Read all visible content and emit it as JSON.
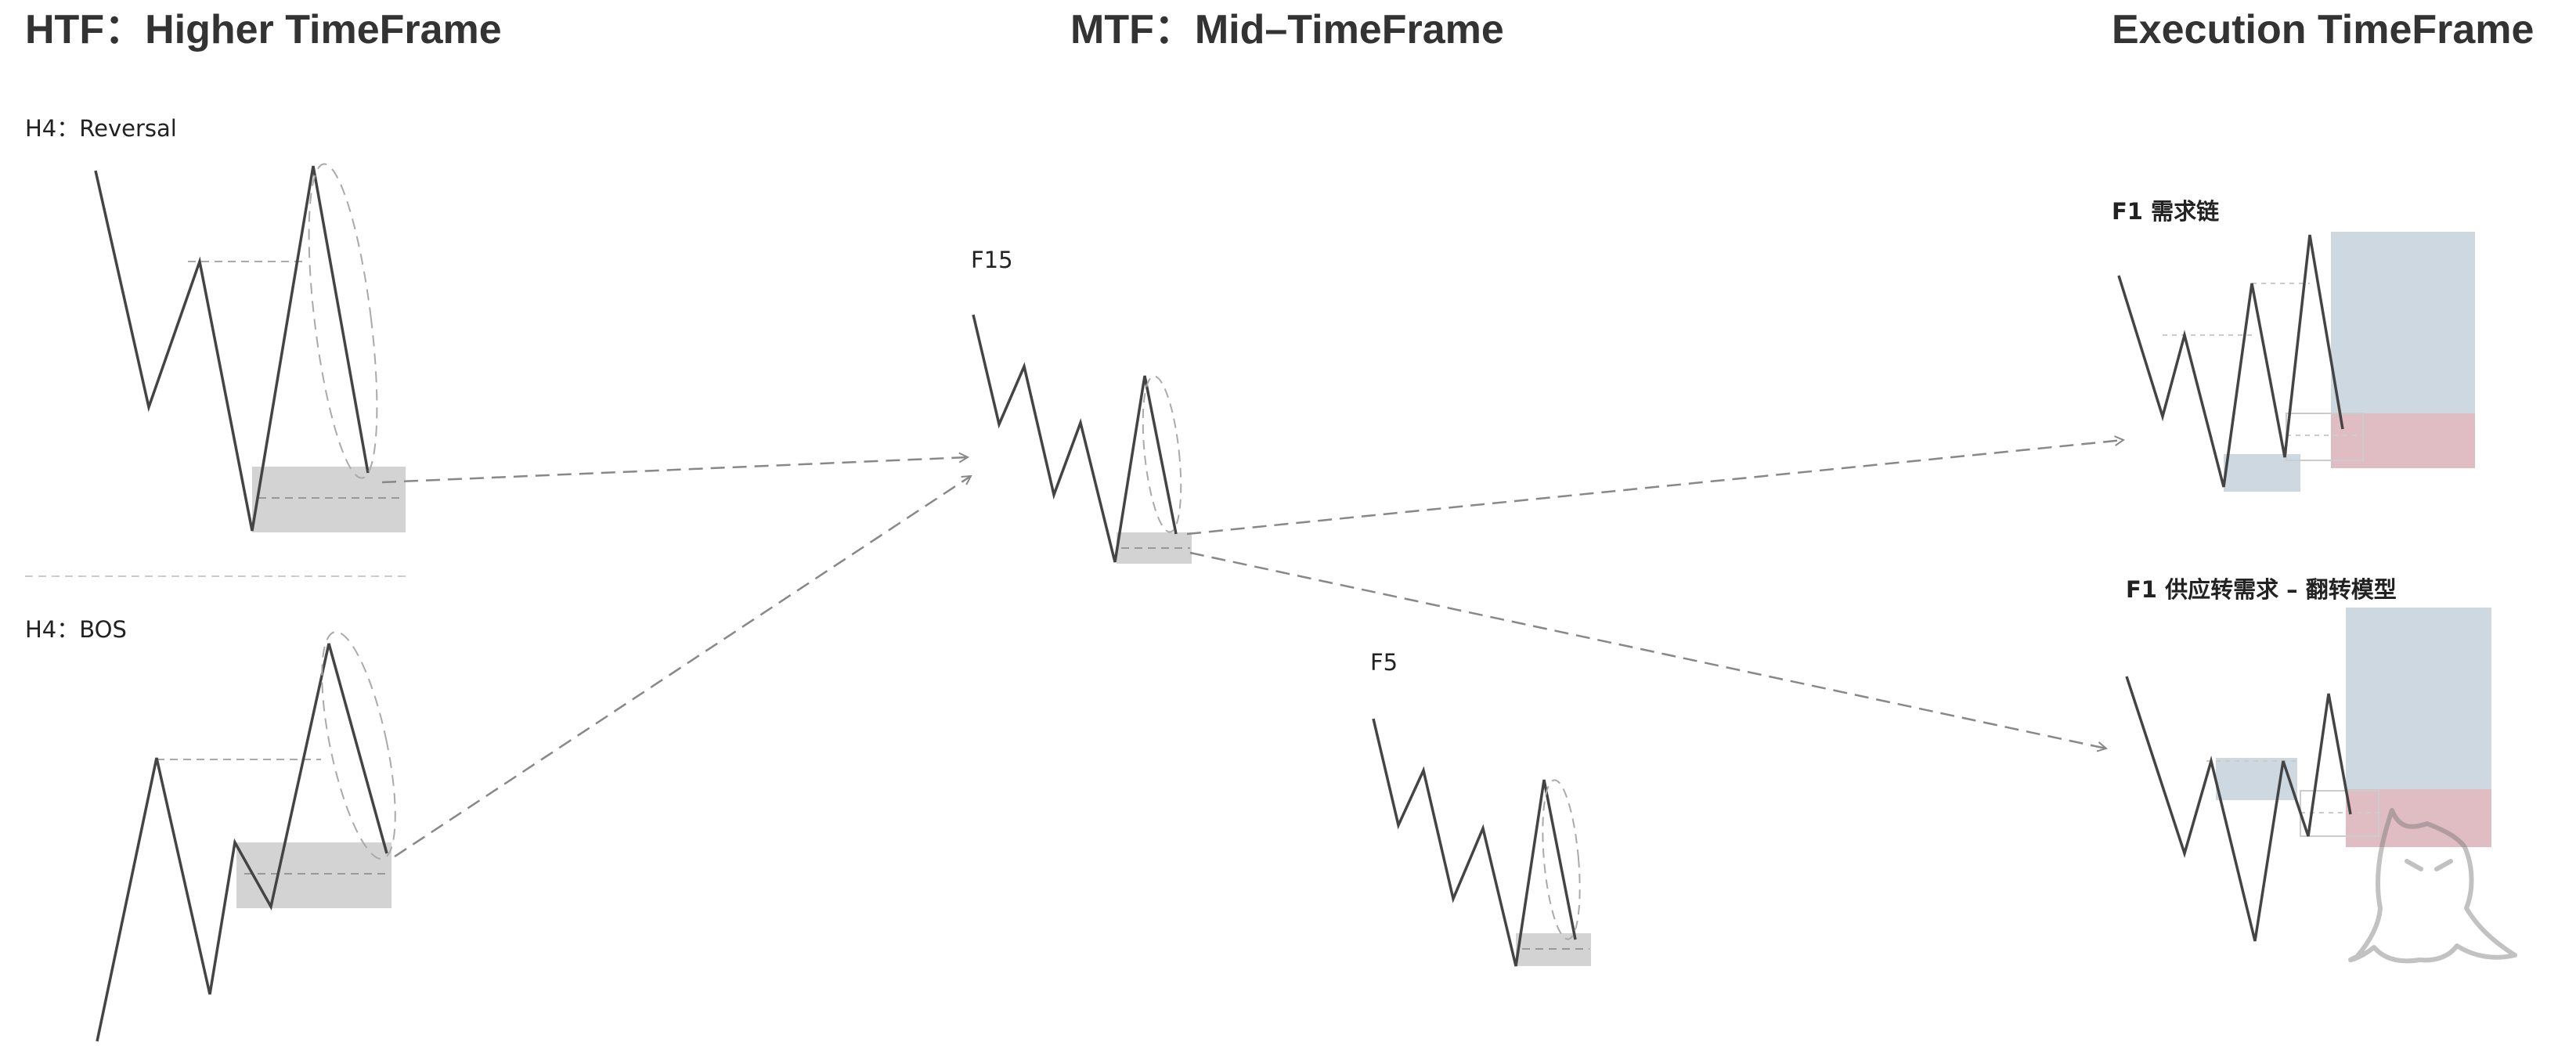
{
  "headings": {
    "htf": "HTF：Higher TimeFrame",
    "mtf": "MTF：Mid–TimeFrame",
    "exec": "Execution TimeFrame"
  },
  "labels": {
    "h4_reversal": "H4：Reversal",
    "h4_bos": "H4：BOS",
    "f15": "F15",
    "f5": "F5",
    "f1_demand_chain": "F1 需求链",
    "f1_flip_model": "F1 供应转需求 – 翻转模型"
  },
  "colors": {
    "price_line": "#444444",
    "zone_gray": "#d3d3d3",
    "zone_blue": "#cdd8e0",
    "zone_red": "#dfbdc2",
    "dashed": "#888888",
    "heading": "#333333"
  },
  "icons": {
    "watermark": "hooded-figure-logo-icon"
  }
}
